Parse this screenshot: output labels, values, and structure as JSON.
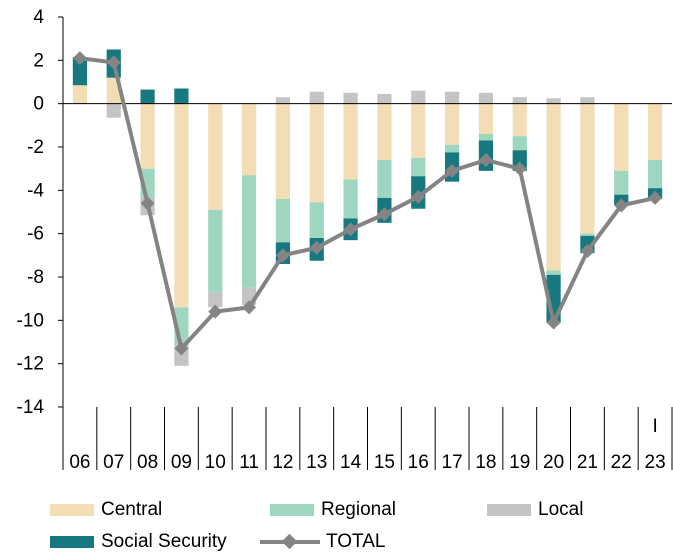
{
  "chart_data": {
    "type": "bar",
    "stacked": true,
    "categories": [
      "06",
      "07",
      "08",
      "09",
      "10",
      "11",
      "12",
      "13",
      "14",
      "15",
      "16",
      "17",
      "18",
      "19",
      "20",
      "21",
      "22",
      "23"
    ],
    "category_note": {
      "index": 17,
      "text": "I"
    },
    "ylim": [
      -14,
      4
    ],
    "yticks": [
      4,
      2,
      0,
      -2,
      -4,
      -6,
      -8,
      -10,
      -12,
      -14
    ],
    "series": [
      {
        "name": "Central",
        "color": "#f2ddb5",
        "values": [
          0.85,
          1.2,
          -3.0,
          -9.4,
          -4.9,
          -3.3,
          -4.4,
          -4.55,
          -3.5,
          -2.6,
          -2.5,
          -1.9,
          -1.4,
          -1.5,
          -7.7,
          -6.0,
          -3.1,
          -2.6
        ]
      },
      {
        "name": "Regional",
        "color": "#9fd6bf",
        "values": [
          0.0,
          0.0,
          -1.35,
          -1.6,
          -3.8,
          -5.2,
          -2.0,
          -1.65,
          -1.8,
          -1.75,
          -0.85,
          -0.35,
          -0.3,
          -0.65,
          -0.2,
          -0.1,
          -1.1,
          -1.3
        ]
      },
      {
        "name": "Local",
        "color": "#c4c4c4",
        "values": [
          0.0,
          -0.65,
          -0.8,
          -1.1,
          -0.7,
          -0.8,
          0.3,
          0.55,
          0.5,
          0.45,
          0.6,
          0.55,
          0.5,
          0.3,
          0.25,
          0.3,
          0.0,
          0.0
        ]
      },
      {
        "name": "Social Security",
        "color": "#17787f",
        "values": [
          1.3,
          1.3,
          0.65,
          0.7,
          0.0,
          0.0,
          -1.0,
          -1.05,
          -1.0,
          -1.15,
          -1.5,
          -1.35,
          -1.4,
          -0.95,
          -2.2,
          -0.8,
          -0.5,
          -0.5
        ]
      }
    ],
    "total": {
      "name": "TOTAL",
      "color": "#848484",
      "values": [
        2.1,
        1.9,
        -4.6,
        -11.3,
        -9.6,
        -9.4,
        -7.0,
        -6.65,
        -5.8,
        -5.1,
        -4.3,
        -3.1,
        -2.6,
        -3.0,
        -10.1,
        -6.8,
        -4.7,
        -4.35
      ]
    },
    "legend_position": "bottom",
    "grid": false,
    "title": "",
    "xlabel": "",
    "ylabel": ""
  }
}
